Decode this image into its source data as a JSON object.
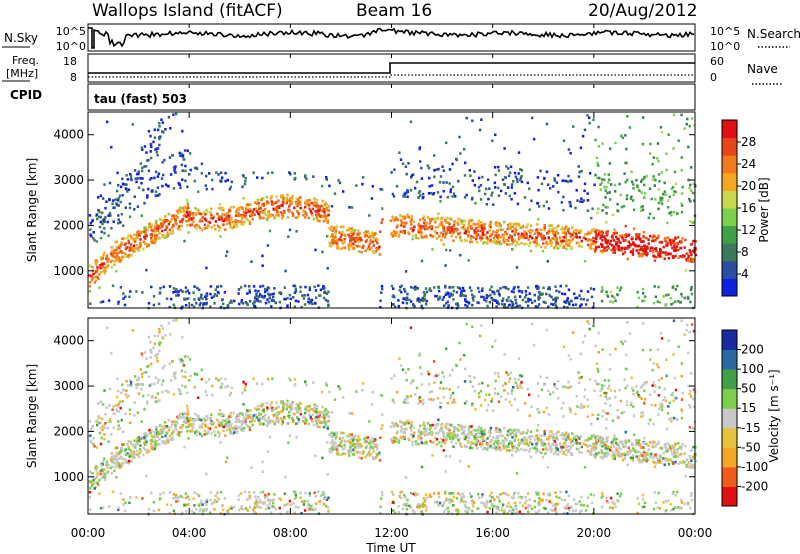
{
  "header": {
    "station": "Wallops Island (fitACF)",
    "beam": "Beam 16",
    "date": "20/Aug/2012"
  },
  "noise_panel": {
    "left_label": "N.Sky",
    "right_label": "N.Search",
    "tick_hi": "10^5",
    "tick_lo": "10^0"
  },
  "freq_panel": {
    "label_line1": "Freq.",
    "label_line2": "[MHz]",
    "tick_hi": "18",
    "tick_lo": "8",
    "right_label": "Nave",
    "right_tick_hi": "60",
    "right_tick_lo": "0"
  },
  "cpid": {
    "label": "CPID",
    "program": "tau (fast) 503"
  },
  "chart_data": [
    {
      "type": "heatmap",
      "name": "power",
      "ylabel": "Slant Range [km]",
      "yticks": [
        "1000",
        "2000",
        "3000",
        "4000"
      ],
      "ylim": [
        180,
        4500
      ],
      "colorbar_label": "Power [dB]",
      "colorbar_ticks": [
        "4",
        "8",
        "12",
        "16",
        "20",
        "24",
        "28"
      ],
      "colors": [
        "#1020e0",
        "#2c4ea0",
        "#3a7a5a",
        "#3fa048",
        "#7bd04c",
        "#c8d84a",
        "#f5a623",
        "#f27a1a",
        "#e8451a",
        "#e01010"
      ]
    },
    {
      "type": "heatmap",
      "name": "velocity",
      "ylabel": "Slant Range [km]",
      "yticks": [
        "1000",
        "2000",
        "3000",
        "4000"
      ],
      "ylim": [
        180,
        4500
      ],
      "colorbar_label": "Velocity [m s⁻¹]",
      "colorbar_ticks": [
        "-200",
        "-100",
        "-50",
        "-15",
        "15",
        "50",
        "100",
        "200"
      ],
      "colors": [
        "#e01010",
        "#f05a1a",
        "#f5a623",
        "#e8c23a",
        "#c8c8c8",
        "#7bcf4a",
        "#3fa048",
        "#2a6aa0",
        "#1a2aa0"
      ]
    }
  ],
  "time_axis": {
    "label": "Time UT",
    "ticks": [
      "00:00",
      "04:00",
      "08:00",
      "12:00",
      "16:00",
      "20:00",
      "00:00"
    ]
  }
}
